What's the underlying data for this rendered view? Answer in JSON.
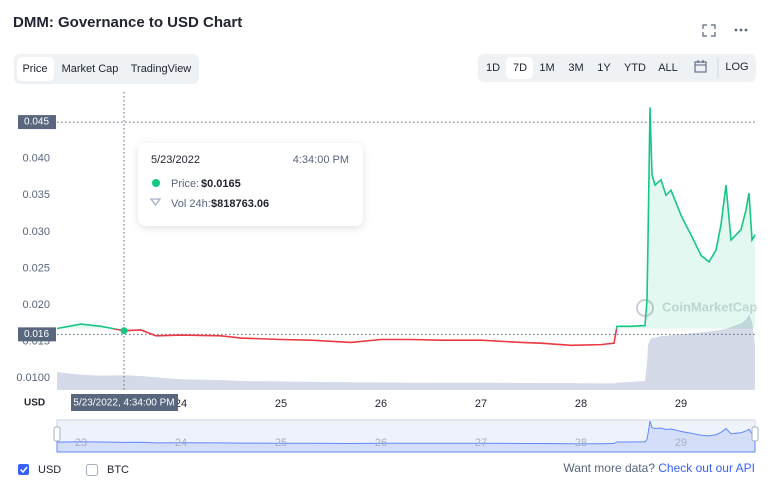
{
  "header": {
    "title": "DMM: Governance to USD Chart",
    "tabs": [
      "Price",
      "Market Cap",
      "TradingView"
    ],
    "ranges": [
      "1D",
      "7D",
      "1M",
      "3M",
      "1Y",
      "YTD",
      "ALL"
    ],
    "log_button": "LOG"
  },
  "chart_data": {
    "type": "line",
    "axis_label": "USD",
    "watermark": "CoinMarketCap",
    "x": [
      22.76,
      23.0,
      23.2,
      23.43,
      23.6,
      23.75,
      24.0,
      24.4,
      24.6,
      25.0,
      25.3,
      25.7,
      26.0,
      26.3,
      26.6,
      27.0,
      27.4,
      27.6,
      27.9,
      28.2,
      28.33,
      28.36,
      28.5,
      28.64,
      28.66,
      28.67,
      28.69,
      28.71,
      28.74,
      28.8,
      28.85,
      28.9,
      29.0,
      29.05,
      29.1,
      29.2,
      29.28,
      29.35,
      29.4,
      29.45,
      29.5,
      29.6,
      29.65,
      29.68,
      29.71,
      29.74
    ],
    "series": [
      {
        "name": "Price",
        "up_color": "#16c784",
        "down_color": "#ea3943",
        "values": [
          0.0168,
          0.0174,
          0.0171,
          0.0165,
          0.0166,
          0.0158,
          0.0159,
          0.0158,
          0.0155,
          0.0153,
          0.0152,
          0.0149,
          0.0153,
          0.0153,
          0.0152,
          0.0152,
          0.0149,
          0.0148,
          0.0145,
          0.0146,
          0.0148,
          0.0171,
          0.0171,
          0.0172,
          0.0207,
          0.0289,
          0.047,
          0.0378,
          0.0364,
          0.0371,
          0.035,
          0.0357,
          0.0323,
          0.0309,
          0.0296,
          0.0268,
          0.0259,
          0.0275,
          0.031,
          0.0364,
          0.0289,
          0.0303,
          0.033,
          0.0353,
          0.0289,
          0.0296
        ]
      },
      {
        "name": "Vol 24h",
        "color": "#cfd6e4",
        "values": [
          1000000,
          850000,
          800000,
          818763.06,
          780000,
          700000,
          600000,
          550000,
          500000,
          480000,
          450000,
          430000,
          420000,
          410000,
          400000,
          400000,
          390000,
          380000,
          380000,
          370000,
          370000,
          400000,
          450000,
          500000,
          1500000,
          2500000,
          2800000,
          2900000,
          2900000,
          3000000,
          3000000,
          3050000,
          3100000,
          3100000,
          3150000,
          3200000,
          3250000,
          3300000,
          3350000,
          3400000,
          3500000,
          3700000,
          3900000,
          4200000,
          3800000,
          2500000
        ]
      }
    ],
    "xlim": [
      22.76,
      29.74
    ],
    "xticks": [
      24,
      25,
      26,
      27,
      28,
      29
    ],
    "ylim": [
      0.0084,
      0.0487
    ],
    "yticks": [
      {
        "value": 0.01,
        "label": "0.0100"
      },
      0.015,
      {
        "value": 0.02,
        "label": "0.020"
      },
      0.025,
      {
        "value": 0.03,
        "label": "0.030"
      },
      0.035,
      {
        "value": 0.04,
        "label": "0.040"
      }
    ],
    "vol_lim": [
      0,
      5000000
    ],
    "marker_ticks": [
      0.045,
      0.016
    ],
    "crosshair": {
      "x": 23.43,
      "label": "5/23/2022, 4:34:00 PM"
    },
    "tooltip": {
      "date": "5/23/2022",
      "time": "4:34:00 PM",
      "price_label": "Price:",
      "price": "$0.0165",
      "vol_label": "Vol 24h:",
      "vol": "$818763.06"
    },
    "navigator_ticks": [
      23,
      24,
      25,
      26,
      27,
      28,
      29
    ]
  },
  "footer": {
    "options": [
      "USD",
      "BTC"
    ],
    "prompt": "Want more data?",
    "link": "Check out our API"
  }
}
